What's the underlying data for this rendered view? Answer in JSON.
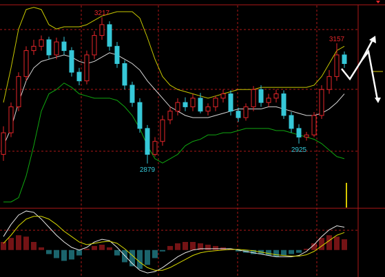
{
  "chart_data": [
    {
      "type": "candlestick",
      "ylim": [
        2777,
        3257
      ],
      "open": [
        2900,
        2950,
        3010,
        3080,
        3140,
        3150,
        3165,
        3130,
        3160,
        3140,
        3090,
        3070,
        3130,
        3175,
        3200,
        3150,
        3110,
        3060,
        3020,
        2960,
        2900,
        2930,
        2980,
        3000,
        3020,
        3010,
        3030,
        3000,
        3010,
        3030,
        3040,
        3000,
        2985,
        3010,
        3050,
        3020,
        3030,
        3040,
        2990,
        2960,
        2940,
        2945,
        2990,
        3050,
        3080,
        3130
      ],
      "high": [
        2965,
        3020,
        3090,
        3150,
        3165,
        3175,
        3172,
        3170,
        3172,
        3148,
        3100,
        3140,
        3185,
        3217,
        3208,
        3160,
        3118,
        3068,
        3030,
        2968,
        2940,
        2990,
        3010,
        3030,
        3032,
        3040,
        3042,
        3018,
        3035,
        3050,
        3048,
        3008,
        3018,
        3058,
        3060,
        3040,
        3050,
        3048,
        2998,
        2970,
        2952,
        2998,
        3060,
        3095,
        3157,
        3138
      ],
      "low": [
        2885,
        2940,
        3000,
        3070,
        3130,
        3140,
        3120,
        3120,
        3130,
        3080,
        3060,
        3062,
        3120,
        3165,
        3140,
        3100,
        3050,
        3010,
        2950,
        2879,
        2895,
        2920,
        2970,
        2990,
        3000,
        3000,
        2995,
        2990,
        3000,
        3020,
        2990,
        2975,
        2978,
        3000,
        3010,
        3010,
        3020,
        2982,
        2950,
        2925,
        2932,
        2940,
        2982,
        3040,
        3070,
        3100
      ],
      "close": [
        2950,
        3010,
        3080,
        3140,
        3150,
        3165,
        3130,
        3160,
        3140,
        3090,
        3070,
        3130,
        3175,
        3200,
        3150,
        3110,
        3060,
        3020,
        2960,
        2900,
        2930,
        2980,
        3000,
        3020,
        3010,
        3030,
        3000,
        3010,
        3030,
        3040,
        3000,
        2985,
        3010,
        3050,
        3020,
        3030,
        3040,
        2990,
        2960,
        2940,
        2945,
        2990,
        3050,
        3080,
        3130,
        3110
      ],
      "up_color": "#e8262a",
      "down_color": "#36c8d8",
      "bands": [
        {
          "color": "#c8c800",
          "values": [
            3020,
            3100,
            3190,
            3235,
            3240,
            3235,
            3200,
            3190,
            3195,
            3195,
            3195,
            3200,
            3210,
            3220,
            3225,
            3230,
            3230,
            3230,
            3215,
            3170,
            3120,
            3080,
            3060,
            3050,
            3045,
            3040,
            3035,
            3030,
            3035,
            3040,
            3045,
            3050,
            3050,
            3050,
            3055,
            3055,
            3055,
            3055,
            3055,
            3055,
            3055,
            3060,
            3080,
            3110,
            3140,
            3150
          ]
        },
        {
          "color": "#d8d8d8",
          "values": [
            2920,
            2960,
            3020,
            3070,
            3100,
            3115,
            3120,
            3125,
            3130,
            3125,
            3115,
            3110,
            3115,
            3125,
            3135,
            3130,
            3120,
            3110,
            3095,
            3070,
            3050,
            3030,
            3010,
            3000,
            2990,
            2985,
            2985,
            2985,
            2990,
            2995,
            3000,
            3005,
            3005,
            3005,
            3005,
            3010,
            3010,
            3005,
            3000,
            2995,
            2990,
            2990,
            2995,
            3005,
            3020,
            3040
          ]
        },
        {
          "color": "#10a810",
          "values": [
            2790,
            2790,
            2800,
            2850,
            2920,
            3000,
            3040,
            3050,
            3065,
            3055,
            3040,
            3035,
            3030,
            3030,
            3030,
            3025,
            3010,
            2990,
            2960,
            2920,
            2890,
            2880,
            2890,
            2900,
            2920,
            2930,
            2935,
            2945,
            2945,
            2950,
            2950,
            2955,
            2960,
            2960,
            2960,
            2960,
            2955,
            2955,
            2950,
            2945,
            2940,
            2935,
            2925,
            2910,
            2895,
            2890
          ]
        }
      ],
      "annotations": [
        3217,
        2879,
        2925,
        3157
      ]
    },
    {
      "type": "macd",
      "ylim": [
        -40,
        60
      ],
      "histogram": [
        12,
        18,
        22,
        20,
        12,
        4,
        -6,
        -12,
        -16,
        -14,
        -8,
        2,
        6,
        8,
        4,
        -8,
        -18,
        -24,
        -28,
        -22,
        -12,
        -2,
        6,
        10,
        12,
        12,
        10,
        8,
        6,
        4,
        2,
        -2,
        -4,
        -6,
        -6,
        -8,
        -10,
        -8,
        -6,
        -4,
        2,
        10,
        18,
        22,
        20,
        16
      ],
      "pos_color": "#e8262a",
      "neg_color": "#36c8d8",
      "series": [
        {
          "color": "#e8e8e8",
          "values": [
            20,
            38,
            52,
            58,
            56,
            46,
            34,
            22,
            12,
            4,
            0,
            4,
            12,
            16,
            14,
            4,
            -8,
            -20,
            -30,
            -34,
            -32,
            -26,
            -18,
            -10,
            -4,
            0,
            2,
            2,
            2,
            2,
            2,
            0,
            -2,
            -4,
            -6,
            -8,
            -10,
            -10,
            -10,
            -8,
            -2,
            8,
            20,
            30,
            36,
            34
          ]
        },
        {
          "color": "#d8d800",
          "values": [
            10,
            22,
            36,
            46,
            50,
            50,
            46,
            38,
            28,
            20,
            12,
            8,
            10,
            12,
            13,
            10,
            2,
            -8,
            -18,
            -26,
            -30,
            -30,
            -26,
            -20,
            -14,
            -8,
            -4,
            -2,
            -1,
            0,
            1,
            1,
            0,
            -1,
            -3,
            -5,
            -7,
            -8,
            -9,
            -9,
            -7,
            -2,
            6,
            14,
            22,
            26
          ]
        }
      ]
    }
  ]
}
